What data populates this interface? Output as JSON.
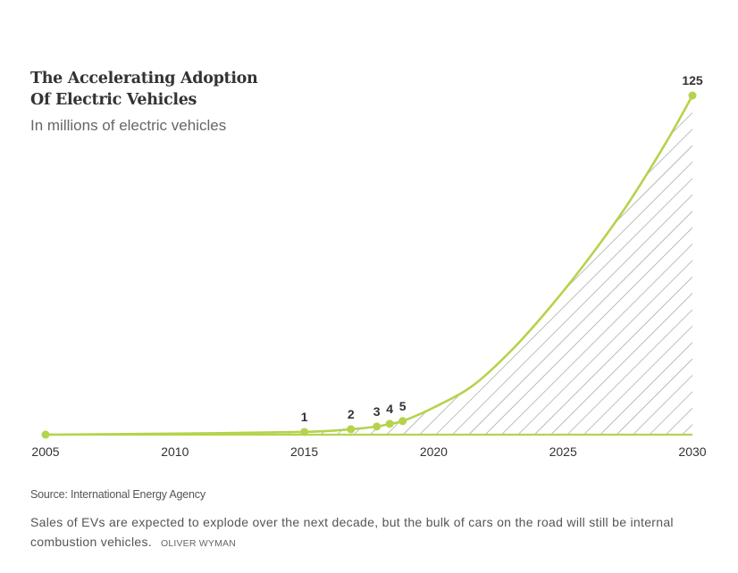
{
  "header": {
    "title_line1": "The Accelerating Adoption",
    "title_line2": "Of Electric Vehicles",
    "subtitle": "In millions of electric vehicles"
  },
  "footer": {
    "source": "Source: International Energy Agency",
    "caption": "Sales of EVs are expected to explode over the next decade, but the bulk of cars on the road will still be internal combustion vehicles.",
    "credit": "OLIVER WYMAN"
  },
  "chart_data": {
    "type": "area",
    "title": "The Accelerating Adoption Of Electric Vehicles",
    "subtitle": "In millions of electric vehicles",
    "xlabel": "",
    "ylabel": "",
    "xlim": [
      2005,
      2030
    ],
    "ylim": [
      0,
      125
    ],
    "x_ticks": [
      2005,
      2010,
      2015,
      2020,
      2025,
      2030
    ],
    "grid": false,
    "legend": "none",
    "line_color": "#b5d34c",
    "hatch_color": "#9a9a9a",
    "points": [
      {
        "x": 2005,
        "y": 0,
        "label": ""
      },
      {
        "x": 2015,
        "y": 1,
        "label": "1"
      },
      {
        "x": 2016.8,
        "y": 2,
        "label": "2"
      },
      {
        "x": 2017.8,
        "y": 3,
        "label": "3"
      },
      {
        "x": 2018.3,
        "y": 4,
        "label": "4"
      },
      {
        "x": 2018.8,
        "y": 5,
        "label": "5"
      },
      {
        "x": 2030,
        "y": 125,
        "label": "125"
      }
    ],
    "curve": [
      {
        "x": 2005,
        "y": 0
      },
      {
        "x": 2010,
        "y": 0.4
      },
      {
        "x": 2015,
        "y": 1
      },
      {
        "x": 2016.8,
        "y": 2
      },
      {
        "x": 2017.8,
        "y": 3
      },
      {
        "x": 2018.3,
        "y": 4
      },
      {
        "x": 2018.8,
        "y": 5
      },
      {
        "x": 2020,
        "y": 10
      },
      {
        "x": 2021.5,
        "y": 18
      },
      {
        "x": 2023,
        "y": 31
      },
      {
        "x": 2024.5,
        "y": 47
      },
      {
        "x": 2026,
        "y": 65
      },
      {
        "x": 2027.5,
        "y": 85
      },
      {
        "x": 2029,
        "y": 108
      },
      {
        "x": 2030,
        "y": 125
      }
    ]
  }
}
